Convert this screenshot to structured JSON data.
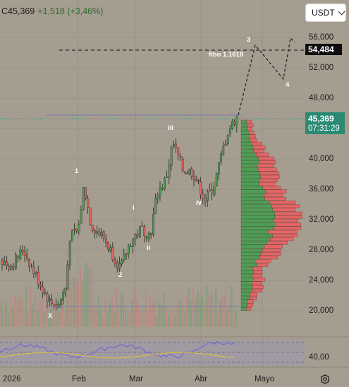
{
  "header": {
    "symbol_price": "C45,369",
    "change": "+1,518 (+3,46%)"
  },
  "currency": {
    "label": "USDT"
  },
  "price_axis": {
    "labels": [
      "56,000",
      "52,000",
      "48,000",
      "40,000",
      "36,000",
      "32,000",
      "28,000",
      "24,000",
      "20,000"
    ]
  },
  "rsi_axis": {
    "label": "40,00"
  },
  "time_axis": {
    "labels": [
      "2026",
      "Feb",
      "Mar",
      "Abr",
      "Mayo"
    ]
  },
  "price_tags": {
    "target": "54,484",
    "current": "45,369",
    "countdown": "07:31:29"
  },
  "annotations": {
    "fibo": "fibo 1.1618",
    "waves": [
      "1",
      "2",
      "i",
      "ii",
      "iii",
      "iv",
      "3",
      "4",
      "X"
    ]
  },
  "colors": {
    "up": "#4f9d55",
    "down": "#e36565",
    "background": "#a49d90",
    "rsi_line": "#6b5fd9",
    "rsi_ma": "#e8c33a"
  },
  "icons": {
    "settings": "gear-icon",
    "currency_dropdown": "chevron-down-icon"
  }
}
